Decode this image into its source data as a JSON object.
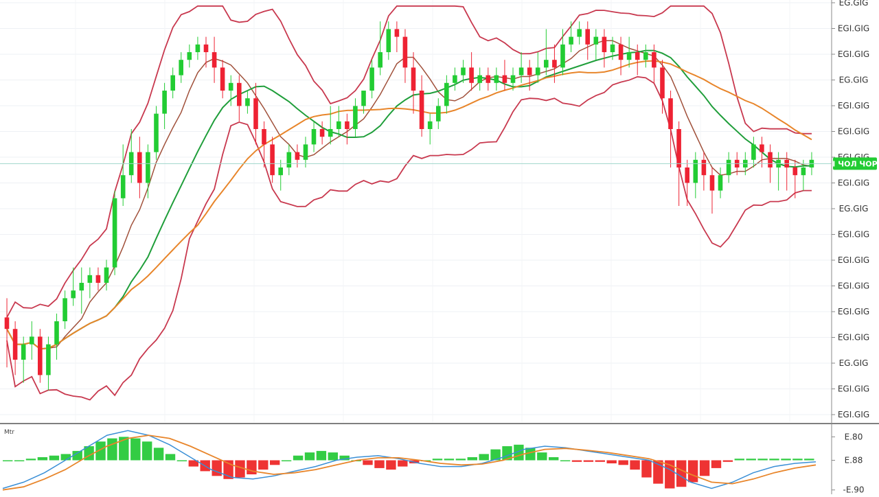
{
  "chart_data": {
    "type": "candlestick",
    "price_panel": {
      "y_tick_labels": [
        "EG.GIG",
        "EGI.GIG",
        "EGI.GIG",
        "EG.GIG",
        "EGI.GIG",
        "EGI.GIG",
        "EGI.GIG",
        "EGI.GIG",
        "EG.GIG",
        "EGI.GIG",
        "EGI.GIG",
        "EGI.GIG",
        "EGI.GIG",
        "EGI.GIG",
        "EG.GIG",
        "EGI.GIG",
        "EGI.GIG"
      ],
      "y_range": [
        0,
        100
      ],
      "last_price_label": "I ЧОЛ ЧОР",
      "last_price_level": 61,
      "grid": true,
      "colors": {
        "up": "#22cc33",
        "down": "#ee2233",
        "bollinger": "#c8384e",
        "ma_fast": "#e8852a",
        "ma_mid": "#1f9e3a",
        "ma_slow": "#a0503a",
        "last_price_line": "#9fd6cc"
      },
      "candles": [
        [
          21,
          18,
          26,
          8
        ],
        [
          18,
          10,
          20,
          6
        ],
        [
          10,
          14,
          16,
          4
        ],
        [
          14,
          16,
          20,
          10
        ],
        [
          16,
          6,
          18,
          4
        ],
        [
          6,
          14,
          16,
          2
        ],
        [
          14,
          20,
          22,
          10
        ],
        [
          20,
          26,
          28,
          18
        ],
        [
          26,
          28,
          34,
          24
        ],
        [
          28,
          30,
          34,
          22
        ],
        [
          30,
          32,
          34,
          26
        ],
        [
          32,
          30,
          34,
          28
        ],
        [
          30,
          34,
          36,
          28
        ],
        [
          34,
          52,
          54,
          32
        ],
        [
          52,
          58,
          66,
          50
        ],
        [
          58,
          64,
          70,
          56
        ],
        [
          64,
          56,
          68,
          52
        ],
        [
          56,
          64,
          66,
          52
        ],
        [
          64,
          74,
          76,
          62
        ],
        [
          74,
          80,
          82,
          70
        ],
        [
          80,
          84,
          86,
          78
        ],
        [
          84,
          88,
          90,
          82
        ],
        [
          88,
          90,
          92,
          86
        ],
        [
          90,
          92,
          94,
          88
        ],
        [
          92,
          90,
          94,
          86
        ],
        [
          90,
          86,
          94,
          82
        ],
        [
          86,
          80,
          88,
          78
        ],
        [
          80,
          82,
          84,
          76
        ],
        [
          82,
          76,
          84,
          72
        ],
        [
          76,
          78,
          80,
          74
        ],
        [
          78,
          70,
          82,
          66
        ],
        [
          70,
          66,
          72,
          60
        ],
        [
          66,
          58,
          68,
          56
        ],
        [
          58,
          60,
          62,
          54
        ],
        [
          60,
          64,
          66,
          58
        ],
        [
          64,
          62,
          66,
          60
        ],
        [
          62,
          66,
          68,
          60
        ],
        [
          66,
          70,
          72,
          64
        ],
        [
          70,
          68,
          72,
          66
        ],
        [
          68,
          70,
          76,
          66
        ],
        [
          70,
          72,
          76,
          68
        ],
        [
          72,
          70,
          74,
          66
        ],
        [
          70,
          76,
          78,
          68
        ],
        [
          76,
          80,
          80,
          74
        ],
        [
          80,
          86,
          88,
          78
        ],
        [
          86,
          90,
          98,
          84
        ],
        [
          90,
          96,
          98,
          88
        ],
        [
          96,
          94,
          98,
          90
        ],
        [
          94,
          86,
          96,
          82
        ],
        [
          86,
          80,
          90,
          74
        ],
        [
          80,
          70,
          84,
          68
        ],
        [
          70,
          72,
          74,
          66
        ],
        [
          72,
          76,
          78,
          70
        ],
        [
          76,
          82,
          84,
          74
        ],
        [
          82,
          84,
          86,
          80
        ],
        [
          84,
          86,
          88,
          82
        ],
        [
          86,
          82,
          90,
          80
        ],
        [
          82,
          84,
          86,
          80
        ],
        [
          84,
          82,
          86,
          80
        ],
        [
          82,
          84,
          86,
          80
        ],
        [
          84,
          82,
          88,
          80
        ],
        [
          82,
          84,
          86,
          80
        ],
        [
          84,
          86,
          90,
          82
        ],
        [
          86,
          84,
          88,
          80
        ],
        [
          84,
          86,
          90,
          82
        ],
        [
          86,
          88,
          96,
          84
        ],
        [
          88,
          86,
          92,
          82
        ],
        [
          86,
          92,
          96,
          84
        ],
        [
          92,
          94,
          98,
          90
        ],
        [
          94,
          96,
          98,
          92
        ],
        [
          96,
          92,
          98,
          88
        ],
        [
          92,
          94,
          96,
          88
        ],
        [
          94,
          90,
          96,
          86
        ],
        [
          90,
          92,
          94,
          88
        ],
        [
          92,
          88,
          94,
          84
        ],
        [
          88,
          90,
          94,
          86
        ],
        [
          90,
          88,
          92,
          84
        ],
        [
          88,
          90,
          92,
          86
        ],
        [
          90,
          86,
          92,
          82
        ],
        [
          86,
          78,
          88,
          74
        ],
        [
          78,
          70,
          80,
          60
        ],
        [
          70,
          60,
          72,
          50
        ],
        [
          60,
          56,
          62,
          50
        ],
        [
          56,
          62,
          64,
          52
        ],
        [
          62,
          58,
          64,
          54
        ],
        [
          58,
          54,
          60,
          48
        ],
        [
          54,
          58,
          60,
          52
        ],
        [
          58,
          62,
          64,
          56
        ],
        [
          62,
          60,
          64,
          58
        ],
        [
          60,
          62,
          64,
          58
        ],
        [
          62,
          66,
          68,
          60
        ],
        [
          66,
          64,
          68,
          60
        ],
        [
          64,
          60,
          66,
          56
        ],
        [
          60,
          62,
          64,
          54
        ],
        [
          62,
          60,
          64,
          54
        ],
        [
          60,
          58,
          62,
          52
        ],
        [
          58,
          60,
          62,
          54
        ],
        [
          60,
          62,
          64,
          58
        ]
      ]
    },
    "indicator_panel": {
      "label": "Mtr",
      "y_tick_labels": [
        "E.80",
        "E.88",
        "-E.90"
      ],
      "y_range": [
        -1,
        1
      ],
      "colors": {
        "hist_up": "#33cc44",
        "hist_down": "#ee3333",
        "macd": "#3a8fd6",
        "signal": "#e8852a"
      },
      "histogram": [
        0,
        0,
        0.05,
        0.1,
        0.15,
        0.2,
        0.3,
        0.45,
        0.6,
        0.7,
        0.75,
        0.7,
        0.6,
        0.4,
        0.2,
        0,
        -0.2,
        -0.35,
        -0.5,
        -0.6,
        -0.55,
        -0.45,
        -0.3,
        -0.15,
        0,
        0.15,
        0.25,
        0.3,
        0.25,
        0.15,
        0,
        -0.15,
        -0.25,
        -0.3,
        -0.2,
        -0.1,
        0,
        0.05,
        0.05,
        0.05,
        0.1,
        0.2,
        0.35,
        0.45,
        0.5,
        0.4,
        0.25,
        0.1,
        0,
        -0.05,
        -0.05,
        -0.05,
        -0.1,
        -0.15,
        -0.3,
        -0.55,
        -0.75,
        -0.9,
        -0.85,
        -0.7,
        -0.5,
        -0.25,
        -0.05,
        0.05,
        0.05,
        0.05,
        0.05,
        0.05,
        0.05,
        0.05
      ],
      "macd_line": [
        -0.9,
        -0.7,
        -0.4,
        0,
        0.4,
        0.8,
        0.95,
        0.8,
        0.5,
        0.1,
        -0.3,
        -0.55,
        -0.6,
        -0.5,
        -0.35,
        -0.2,
        0,
        0.1,
        0.15,
        0.05,
        -0.1,
        -0.2,
        -0.2,
        -0.1,
        0.1,
        0.35,
        0.45,
        0.4,
        0.3,
        0.2,
        0.1,
        0,
        -0.3,
        -0.7,
        -0.9,
        -0.7,
        -0.4,
        -0.2,
        -0.1,
        -0.05
      ],
      "signal_line": [
        -0.95,
        -0.85,
        -0.6,
        -0.3,
        0.1,
        0.45,
        0.7,
        0.8,
        0.7,
        0.45,
        0.15,
        -0.15,
        -0.35,
        -0.45,
        -0.4,
        -0.3,
        -0.15,
        0,
        0.08,
        0.08,
        0,
        -0.1,
        -0.15,
        -0.12,
        0,
        0.2,
        0.35,
        0.38,
        0.32,
        0.25,
        0.15,
        0.05,
        -0.15,
        -0.45,
        -0.7,
        -0.75,
        -0.6,
        -0.4,
        -0.25,
        -0.15
      ]
    }
  }
}
